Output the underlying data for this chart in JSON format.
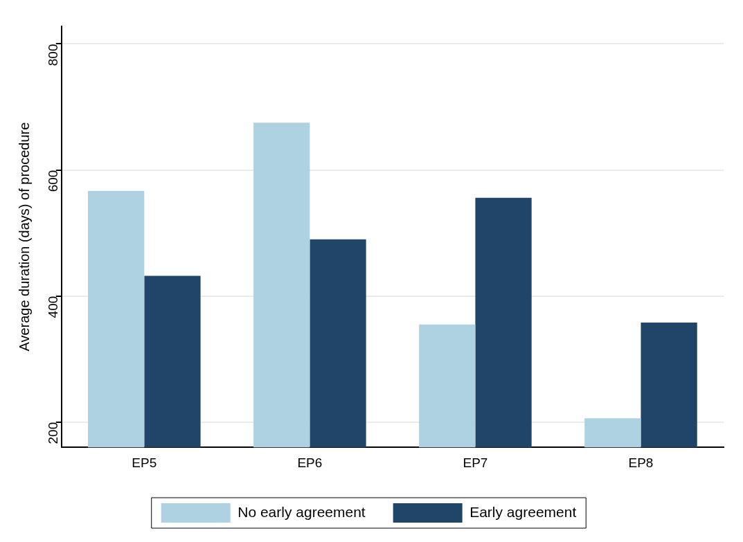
{
  "chart_data": {
    "type": "bar",
    "ylabel": "Average duration (days) of procedure",
    "categories": [
      "EP5",
      "EP6",
      "EP7",
      "EP8"
    ],
    "series": [
      {
        "name": "No early agreement",
        "color": "#aed2e2",
        "values": [
          567,
          675,
          355,
          206
        ]
      },
      {
        "name": "Early agreement",
        "color": "#214568",
        "values": [
          432,
          490,
          556,
          358
        ]
      }
    ],
    "ylim": [
      160,
      828
    ],
    "yticks": [
      200,
      400,
      600,
      800
    ],
    "grid": "y",
    "legend": "bottom"
  }
}
